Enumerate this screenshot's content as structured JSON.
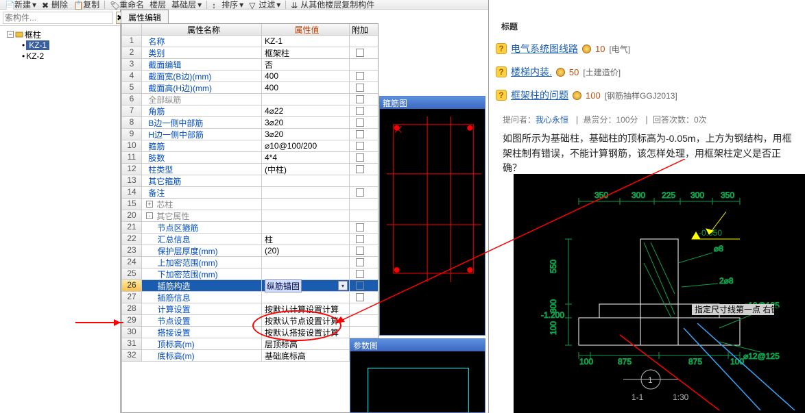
{
  "toolbar": {
    "new": "新建",
    "del": "删除",
    "copy": "复制",
    "rename": "重命名",
    "floor": "楼层",
    "basefloor": "基础层",
    "sort": "排序",
    "filter": "过滤",
    "copyfrom": "从其他楼层复制构件"
  },
  "search": {
    "placeholder": "索构件..."
  },
  "tree": {
    "root": "框柱",
    "items": [
      "KZ-1",
      "KZ-2"
    ]
  },
  "tab": "属性编辑",
  "gridhdr": {
    "name": "属性名称",
    "val": "属性值",
    "add": "附加"
  },
  "rows": [
    {
      "n": "1",
      "name": "名称",
      "val": "KZ-1",
      "cls": "blue",
      "cb": false
    },
    {
      "n": "2",
      "name": "类别",
      "val": "框架柱",
      "cls": "blue",
      "cb": true
    },
    {
      "n": "3",
      "name": "截面编辑",
      "val": "否",
      "cls": "blue",
      "cb": false
    },
    {
      "n": "4",
      "name": "截面宽(B边)(mm)",
      "val": "400",
      "cls": "blue",
      "cb": true
    },
    {
      "n": "5",
      "name": "截面高(H边)(mm)",
      "val": "400",
      "cls": "blue",
      "cb": true
    },
    {
      "n": "6",
      "name": "全部纵筋",
      "val": "",
      "cls": "gray",
      "cb": true
    },
    {
      "n": "7",
      "name": "角筋",
      "val": "4⌀22",
      "cls": "blue",
      "cb": true
    },
    {
      "n": "8",
      "name": "B边一侧中部筋",
      "val": "3⌀20",
      "cls": "blue",
      "cb": true
    },
    {
      "n": "9",
      "name": "H边一侧中部筋",
      "val": "3⌀20",
      "cls": "blue",
      "cb": true
    },
    {
      "n": "10",
      "name": "箍筋",
      "val": "⌀10@100/200",
      "cls": "blue",
      "cb": true
    },
    {
      "n": "11",
      "name": "肢数",
      "val": "4*4",
      "cls": "blue",
      "cb": true
    },
    {
      "n": "12",
      "name": "柱类型",
      "val": "(中柱)",
      "cls": "blue",
      "cb": true
    },
    {
      "n": "13",
      "name": "其它箍筋",
      "val": "",
      "cls": "blue",
      "cb": false
    },
    {
      "n": "14",
      "name": "备注",
      "val": "",
      "cls": "blue",
      "cb": true
    },
    {
      "n": "15",
      "name": "芯柱",
      "val": "",
      "cls": "gray",
      "cb": false,
      "exp": "+"
    },
    {
      "n": "20",
      "name": "其它属性",
      "val": "",
      "cls": "gray",
      "cb": false,
      "exp": "-"
    },
    {
      "n": "21",
      "name": "节点区箍筋",
      "val": "",
      "cls": "blue",
      "cb": true,
      "ind": 1
    },
    {
      "n": "22",
      "name": "汇总信息",
      "val": "柱",
      "cls": "blue",
      "cb": true,
      "ind": 1
    },
    {
      "n": "23",
      "name": "保护层厚度(mm)",
      "val": "(20)",
      "cls": "blue",
      "cb": true,
      "ind": 1
    },
    {
      "n": "24",
      "name": "上加密范围(mm)",
      "val": "",
      "cls": "blue",
      "cb": true,
      "ind": 1
    },
    {
      "n": "25",
      "name": "下加密范围(mm)",
      "val": "",
      "cls": "blue",
      "cb": true,
      "ind": 1
    },
    {
      "n": "26",
      "name": "插筋构造",
      "val": "纵筋锚固",
      "cls": "blue",
      "cb": true,
      "ind": 1,
      "sel": true
    },
    {
      "n": "27",
      "name": "插筋信息",
      "val": "",
      "cls": "blue",
      "cb": true,
      "ind": 1
    },
    {
      "n": "28",
      "name": "计算设置",
      "val": "按默认计算设置计算",
      "cls": "blue",
      "cb": false,
      "ind": 1
    },
    {
      "n": "29",
      "name": "节点设置",
      "val": "按默认节点设置计算",
      "cls": "blue",
      "cb": false,
      "ind": 1
    },
    {
      "n": "30",
      "name": "搭接设置",
      "val": "按默认搭接设置计算",
      "cls": "blue",
      "cb": false,
      "ind": 1
    },
    {
      "n": "31",
      "name": "顶标高(m)",
      "val": "层顶标高",
      "cls": "blue",
      "cb": true,
      "ind": 1
    },
    {
      "n": "32",
      "name": "底标高(m)",
      "val": "基础底标高",
      "cls": "blue",
      "cb": true,
      "ind": 1
    }
  ],
  "cad1": {
    "title": "箍筋图"
  },
  "cad2": {
    "title": "参数图"
  },
  "right": {
    "title": "标题",
    "qs": [
      {
        "t": "电气系统图线路",
        "p": "10",
        "tag": "[电气]"
      },
      {
        "t": "楼梯内装.",
        "p": "50",
        "tag": "[土建造价]"
      },
      {
        "t": "框架柱的问题",
        "p": "100",
        "tag": "[钢筋抽样GGJ2013]"
      }
    ],
    "meta_a": "提问者：",
    "meta_b": "我心永恒",
    "meta_c": "悬赏分：100分",
    "meta_d": "回答次数：0次",
    "text": "如图所示为基础柱，基础柱的顶标高为-0.05m，上方为钢结构，用框架柱制有错误，不能计算钢筋，该怎样处理，用框架柱定义是否正确？"
  },
  "bigcad": {
    "dims_top": [
      "350",
      "300",
      "225",
      "300",
      "350"
    ],
    "dims_left": [
      "550",
      "300",
      "100"
    ],
    "dims_bot": [
      "100",
      "875",
      "875",
      "100"
    ],
    "elev": "-0.050",
    "sec": "1-1",
    "scale": "1:30",
    "circ": "1"
  }
}
